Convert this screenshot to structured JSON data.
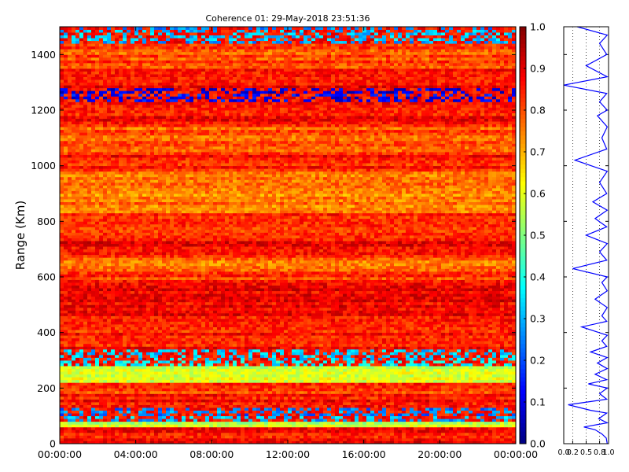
{
  "chart_data": [
    {
      "type": "heatmap",
      "title": "Coherence 01: 29-May-2018 23:51:36",
      "xlabel": "",
      "ylabel": "Range (Km)",
      "x_ticks": [
        "00:00:00",
        "04:00:00",
        "08:00:00",
        "12:00:00",
        "16:00:00",
        "20:00:00",
        "00:00:00"
      ],
      "xlim": [
        "00:00:00",
        "24:00:00"
      ],
      "y_ticks": [
        0,
        200,
        400,
        600,
        800,
        1000,
        1200,
        1400
      ],
      "ylim": [
        0,
        1500
      ],
      "colormap": "jet",
      "clim": [
        0.0,
        1.0
      ],
      "colorbar_ticks": [
        "0.0",
        "0.1",
        "0.2",
        "0.3",
        "0.4",
        "0.5",
        "0.6",
        "0.7",
        "0.8",
        "0.9",
        "1.0"
      ],
      "range_profile": [
        {
          "range": 10,
          "value": 0.86
        },
        {
          "range": 40,
          "value": 0.88
        },
        {
          "range": 75,
          "value": 0.55
        },
        {
          "range": 90,
          "value": 0.3
        },
        {
          "range": 110,
          "value": 0.25
        },
        {
          "range": 150,
          "value": 0.87
        },
        {
          "range": 200,
          "value": 0.82
        },
        {
          "range": 240,
          "value": 0.58
        },
        {
          "range": 320,
          "value": 0.35
        },
        {
          "range": 350,
          "value": 0.86
        },
        {
          "range": 400,
          "value": 0.86
        },
        {
          "range": 480,
          "value": 0.88
        },
        {
          "range": 560,
          "value": 0.88
        },
        {
          "range": 600,
          "value": 0.82
        },
        {
          "range": 640,
          "value": 0.78
        },
        {
          "range": 700,
          "value": 0.87
        },
        {
          "range": 800,
          "value": 0.84
        },
        {
          "range": 860,
          "value": 0.76
        },
        {
          "range": 950,
          "value": 0.76
        },
        {
          "range": 1000,
          "value": 0.86
        },
        {
          "range": 1100,
          "value": 0.8
        },
        {
          "range": 1200,
          "value": 0.86
        },
        {
          "range": 1250,
          "value": 0.12
        },
        {
          "range": 1300,
          "value": 0.87
        },
        {
          "range": 1400,
          "value": 0.8
        },
        {
          "range": 1475,
          "value": 0.3
        }
      ]
    },
    {
      "type": "line",
      "title": "",
      "xlabel": "",
      "ylabel": "",
      "xlim": [
        0.0,
        1.0
      ],
      "ylim": [
        0,
        1500
      ],
      "grid": true,
      "x_ticks": [
        "0.0",
        "0.2",
        "0.5",
        "0.8",
        "1.0"
      ],
      "series": [
        {
          "x": [
            0.97,
            0.95,
            0.85,
            0.7,
            0.45,
            0.97,
            0.78,
            0.96,
            0.6,
            0.1,
            0.96,
            0.8,
            0.97,
            0.55,
            0.96,
            0.7,
            0.97,
            0.75,
            0.97,
            0.6,
            0.96,
            0.85,
            0.97,
            0.4,
            0.96,
            0.85,
            0.97,
            0.7,
            0.97,
            0.85,
            0.97,
            0.2,
            0.96,
            0.8,
            0.97,
            0.5,
            0.96,
            0.7,
            0.97,
            0.65,
            0.96,
            0.8,
            0.97,
            0.25,
            0.96,
            0.85,
            0.97,
            0.75,
            0.97,
            0.8,
            0.96,
            0.0,
            0.97,
            0.5,
            0.96,
            0.8,
            0.97,
            0.3
          ],
          "y": [
            0,
            20,
            35,
            50,
            60,
            75,
            90,
            110,
            120,
            140,
            160,
            180,
            200,
            215,
            230,
            250,
            270,
            290,
            310,
            330,
            350,
            370,
            390,
            420,
            440,
            460,
            490,
            520,
            550,
            580,
            600,
            630,
            660,
            690,
            720,
            750,
            780,
            810,
            840,
            870,
            900,
            940,
            980,
            1020,
            1060,
            1100,
            1140,
            1180,
            1200,
            1230,
            1260,
            1290,
            1320,
            1360,
            1400,
            1440,
            1470,
            1500
          ]
        }
      ]
    }
  ]
}
